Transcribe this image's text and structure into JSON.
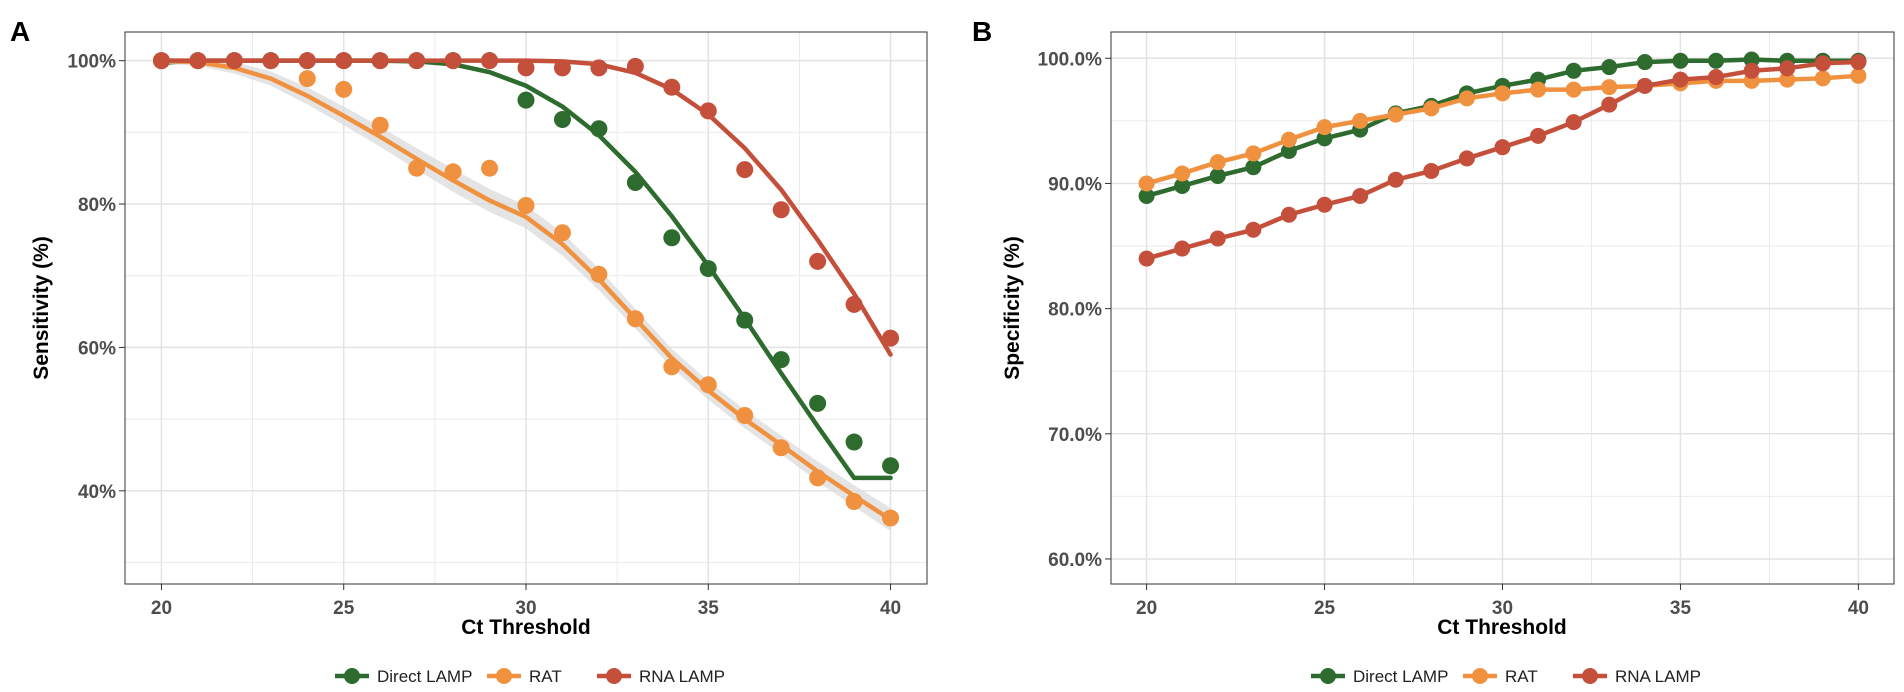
{
  "colors": {
    "direct_lamp": "#2e6b2f",
    "rat": "#f0913f",
    "rna_lamp": "#c4503b",
    "grid": "#ebebeb",
    "band": "#d9d9d9",
    "axis_text": "#4d4d4d"
  },
  "chart_data": [
    {
      "type": "scatter",
      "panel_label": "A",
      "title": "",
      "xlabel": "Ct Threshold",
      "ylabel": "Sensitivity (%)",
      "xlim": [
        19,
        41
      ],
      "ylim": [
        27,
        104
      ],
      "xticks": [
        20,
        25,
        30,
        35,
        40
      ],
      "yticks": [
        40,
        60,
        80,
        100
      ],
      "ytick_labels": [
        "40%",
        "60%",
        "80%",
        "100%"
      ],
      "grid": true,
      "legend_position": "bottom",
      "x": [
        20,
        21,
        22,
        23,
        24,
        25,
        26,
        27,
        28,
        29,
        30,
        31,
        32,
        33,
        34,
        35,
        36,
        37,
        38,
        39,
        40
      ],
      "series": [
        {
          "name": "Direct LAMP",
          "color_key": "direct_lamp",
          "values": [
            100,
            100,
            100,
            100,
            100,
            100,
            100,
            100,
            100,
            100,
            94.5,
            91.8,
            90.5,
            83,
            75.3,
            71,
            63.8,
            58.3,
            52.2,
            46.8,
            43.5
          ],
          "fit": [
            99.7,
            100,
            100,
            100,
            100,
            100,
            100,
            99.9,
            99.5,
            98.4,
            96.5,
            93.6,
            89.6,
            84.5,
            78.3,
            71.4,
            64,
            56.4,
            49,
            41.8,
            41.8
          ],
          "show_band": false
        },
        {
          "name": "RAT",
          "color_key": "rat",
          "values": [
            100,
            100,
            100,
            null,
            97.5,
            96,
            91,
            85,
            84.5,
            85,
            79.8,
            76,
            70.2,
            64,
            57.3,
            54.8,
            50.5,
            46,
            41.8,
            38.5,
            36.2
          ],
          "fit": [
            100,
            99.8,
            99,
            97.5,
            95.1,
            92.3,
            89.4,
            86.3,
            83.3,
            80.5,
            78.2,
            74.4,
            69.5,
            64,
            58.5,
            54,
            50,
            46.4,
            42.7,
            39.3,
            36
          ],
          "show_band": true,
          "band_halfwidth": [
            0.4,
            0.5,
            0.8,
            1,
            1.2,
            1.3,
            1.4,
            1.5,
            1.6,
            1.6,
            1.6,
            1.6,
            1.5,
            1.4,
            1.3,
            1.3,
            1.3,
            1.3,
            1.4,
            1.5,
            1.6
          ]
        },
        {
          "name": "RNA LAMP",
          "color_key": "rna_lamp",
          "values": [
            100,
            100,
            100,
            100,
            100,
            100,
            100,
            100,
            100,
            100,
            99,
            99,
            99,
            99.2,
            96.3,
            93,
            84.8,
            79.2,
            72,
            66,
            61.3
          ],
          "fit": [
            100,
            100,
            100,
            100,
            100,
            100,
            100,
            100,
            100,
            100,
            100,
            99.9,
            99.5,
            98.3,
            96,
            92.5,
            87.8,
            82,
            75,
            67.5,
            59
          ]
        }
      ]
    },
    {
      "type": "line",
      "panel_label": "B",
      "title": "",
      "xlabel": "Ct Threshold",
      "ylabel": "Specificity (%)",
      "xlim": [
        19,
        41
      ],
      "ylim": [
        58,
        102.1
      ],
      "xticks": [
        20,
        25,
        30,
        35,
        40
      ],
      "yticks": [
        60,
        70,
        80,
        90,
        100
      ],
      "ytick_labels": [
        "60.0%",
        "70.0%",
        "80.0%",
        "90.0%",
        "100.0%"
      ],
      "grid": true,
      "legend_position": "bottom",
      "x": [
        20,
        21,
        22,
        23,
        24,
        25,
        26,
        27,
        28,
        29,
        30,
        31,
        32,
        33,
        34,
        35,
        36,
        37,
        38,
        39,
        40
      ],
      "series": [
        {
          "name": "Direct LAMP",
          "color_key": "direct_lamp",
          "values": [
            89,
            89.8,
            90.6,
            91.3,
            92.6,
            93.6,
            94.3,
            95.6,
            96.2,
            97.2,
            97.8,
            98.3,
            99,
            99.3,
            99.7,
            99.8,
            99.8,
            99.9,
            99.8,
            99.8,
            99.8
          ]
        },
        {
          "name": "RAT",
          "color_key": "rat",
          "values": [
            90,
            90.8,
            91.7,
            92.4,
            93.5,
            94.5,
            95,
            95.5,
            96,
            96.8,
            97.2,
            97.5,
            97.5,
            97.7,
            97.8,
            98,
            98.2,
            98.2,
            98.3,
            98.4,
            98.6
          ]
        },
        {
          "name": "RNA LAMP",
          "color_key": "rna_lamp",
          "values": [
            84,
            84.8,
            85.6,
            86.3,
            87.5,
            88.3,
            89,
            90.3,
            91,
            92,
            92.9,
            93.8,
            94.9,
            96.3,
            97.8,
            98.3,
            98.5,
            99,
            99.2,
            99.6,
            99.7
          ]
        }
      ]
    }
  ]
}
